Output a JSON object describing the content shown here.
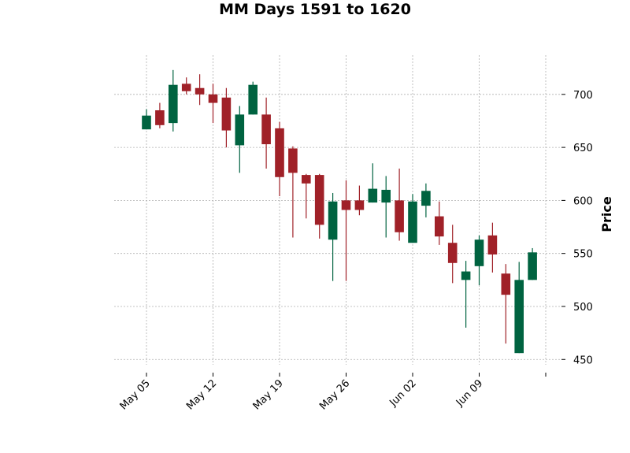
{
  "chart_data": {
    "type": "candlestick",
    "title": "MM Days 1591 to 1620",
    "xlabel": "",
    "ylabel": "Price",
    "ylim": [
      445,
      737
    ],
    "y_ticks": [
      450,
      500,
      550,
      600,
      650,
      700
    ],
    "y_tick_labels": [
      "450",
      "500",
      "550",
      "600",
      "650",
      "700"
    ],
    "y_axis_side": "right",
    "x_tick_labels": [
      "May 05",
      "May 12",
      "May 19",
      "May 26",
      "Jun 02",
      "Jun 09",
      ""
    ],
    "grid": true,
    "colors": {
      "up": "#006340",
      "down": "#a02128",
      "grid": "#b0b0b0"
    },
    "candles": [
      {
        "date": "2025-05-05",
        "open": 667,
        "high": 686,
        "low": 667,
        "close": 680
      },
      {
        "date": "2025-05-06",
        "open": 685,
        "high": 692,
        "low": 668,
        "close": 671
      },
      {
        "date": "2025-05-07",
        "open": 673,
        "high": 723,
        "low": 665,
        "close": 709
      },
      {
        "date": "2025-05-08",
        "open": 710,
        "high": 716,
        "low": 700,
        "close": 703
      },
      {
        "date": "2025-05-09",
        "open": 706,
        "high": 719,
        "low": 690,
        "close": 700
      },
      {
        "date": "2025-05-10",
        "open": 700,
        "high": 710,
        "low": 673,
        "close": 692
      },
      {
        "date": "2025-05-11",
        "open": 697,
        "high": 706,
        "low": 650,
        "close": 666
      },
      {
        "date": "2025-05-12",
        "open": 652,
        "high": 689,
        "low": 626,
        "close": 681
      },
      {
        "date": "2025-05-13",
        "open": 681,
        "high": 712,
        "low": 681,
        "close": 709
      },
      {
        "date": "2025-05-14",
        "open": 681,
        "high": 697,
        "low": 630,
        "close": 653
      },
      {
        "date": "2025-05-15",
        "open": 668,
        "high": 674,
        "low": 604,
        "close": 622
      },
      {
        "date": "2025-05-16",
        "open": 649,
        "high": 651,
        "low": 565,
        "close": 626
      },
      {
        "date": "2025-05-17",
        "open": 624,
        "high": 625,
        "low": 583,
        "close": 616
      },
      {
        "date": "2025-05-18",
        "open": 624,
        "high": 625,
        "low": 564,
        "close": 577
      },
      {
        "date": "2025-05-19",
        "open": 563,
        "high": 607,
        "low": 524,
        "close": 599
      },
      {
        "date": "2025-05-20",
        "open": 600,
        "high": 619,
        "low": 524,
        "close": 591
      },
      {
        "date": "2025-05-21",
        "open": 600,
        "high": 614,
        "low": 586,
        "close": 591
      },
      {
        "date": "2025-05-22",
        "open": 598,
        "high": 635,
        "low": 598,
        "close": 611
      },
      {
        "date": "2025-05-23",
        "open": 598,
        "high": 623,
        "low": 565,
        "close": 610
      },
      {
        "date": "2025-05-24",
        "open": 600,
        "high": 630,
        "low": 562,
        "close": 570
      },
      {
        "date": "2025-05-25",
        "open": 560,
        "high": 606,
        "low": 560,
        "close": 599
      },
      {
        "date": "2025-05-26",
        "open": 595,
        "high": 616,
        "low": 584,
        "close": 609
      },
      {
        "date": "2025-05-27",
        "open": 585,
        "high": 599,
        "low": 558,
        "close": 566
      },
      {
        "date": "2025-05-28",
        "open": 560,
        "high": 577,
        "low": 522,
        "close": 541
      },
      {
        "date": "2025-05-29",
        "open": 525,
        "high": 543,
        "low": 480,
        "close": 533
      },
      {
        "date": "2025-05-30",
        "open": 538,
        "high": 567,
        "low": 520,
        "close": 563
      },
      {
        "date": "2025-05-31",
        "open": 567,
        "high": 579,
        "low": 532,
        "close": 549
      },
      {
        "date": "2025-06-01",
        "open": 531,
        "high": 540,
        "low": 465,
        "close": 511
      },
      {
        "date": "2025-06-02",
        "open": 456,
        "high": 542,
        "low": 456,
        "close": 525
      },
      {
        "date": "2025-06-03",
        "open": 525,
        "high": 555,
        "low": 525,
        "close": 551
      }
    ]
  }
}
